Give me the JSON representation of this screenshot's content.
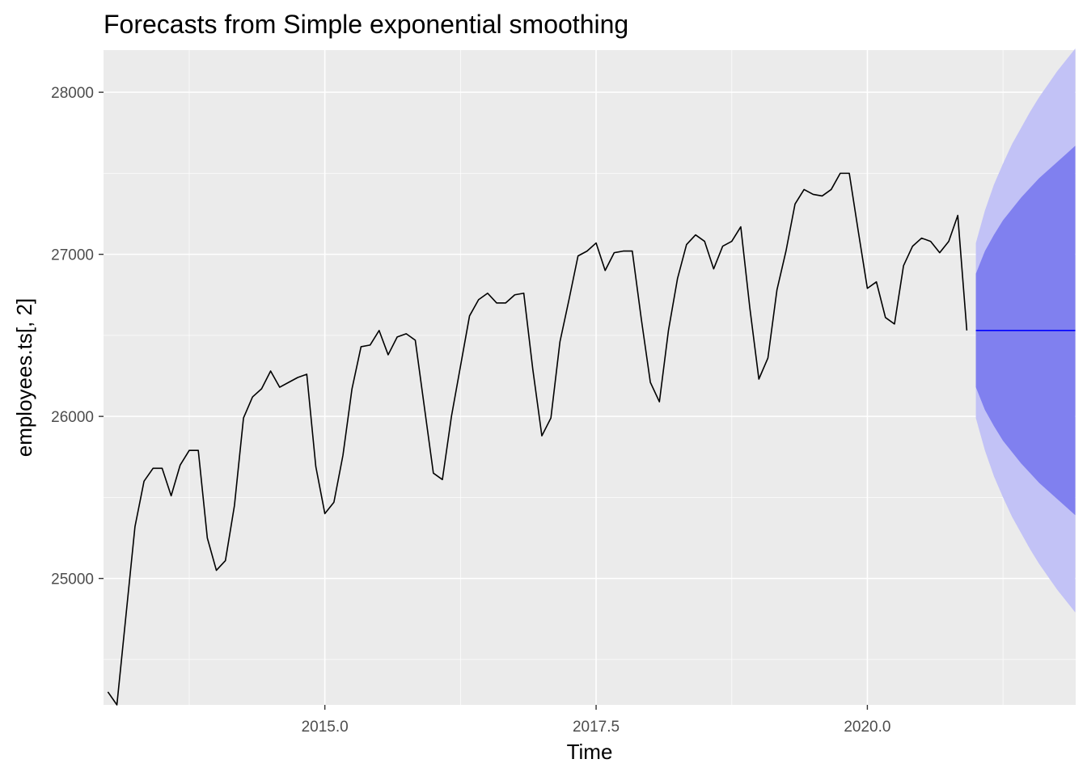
{
  "chart_data": {
    "type": "line",
    "title": "Forecasts from Simple exponential smoothing",
    "xlabel": "Time",
    "ylabel": "employees.ts[, 2]",
    "xlim": [
      2012.96,
      2021.92
    ],
    "ylim": [
      24220,
      28260
    ],
    "x_ticks": [
      {
        "value": 2015.0,
        "label": "2015.0"
      },
      {
        "value": 2017.5,
        "label": "2017.5"
      },
      {
        "value": 2020.0,
        "label": "2020.0"
      }
    ],
    "x_minor_ticks": [
      2013.75,
      2016.25,
      2018.75,
      2021.25
    ],
    "y_ticks": [
      {
        "value": 25000,
        "label": "25000"
      },
      {
        "value": 26000,
        "label": "26000"
      },
      {
        "value": 27000,
        "label": "27000"
      },
      {
        "value": 28000,
        "label": "28000"
      }
    ],
    "y_minor_ticks": [
      24500,
      25500,
      26500,
      27500
    ],
    "grid": true,
    "colors": {
      "panel_bg": "#ebebeb",
      "grid_major": "#ffffff",
      "series": "#000000",
      "forecast_line": "#0000ff",
      "band_80": "#8080ef",
      "band_95": "#c2c2f6"
    },
    "series": [
      {
        "start": 2013.0,
        "frequency": 12,
        "values": [
          24300,
          24220,
          24770,
          25320,
          25600,
          25680,
          25680,
          25510,
          25700,
          25790,
          25790,
          25250,
          25050,
          25110,
          25450,
          25990,
          26120,
          26170,
          26280,
          26180,
          26210,
          26240,
          26260,
          25690,
          25400,
          25470,
          25760,
          26170,
          26430,
          26440,
          26530,
          26380,
          26490,
          26510,
          26470,
          26060,
          25650,
          25610,
          26000,
          26310,
          26620,
          26720,
          26760,
          26700,
          26700,
          26750,
          26760,
          26290,
          25880,
          25990,
          26460,
          26720,
          26990,
          27020,
          27070,
          26900,
          27010,
          27020,
          27020,
          26600,
          26210,
          26090,
          26530,
          26850,
          27060,
          27120,
          27080,
          26910,
          27050,
          27080,
          27170,
          26670,
          26230,
          26360,
          26780,
          27020,
          27310,
          27400,
          27370,
          27360,
          27400,
          27500,
          27500,
          27140,
          26790,
          26830,
          26610,
          26570,
          26930,
          27050,
          27100,
          27080,
          27010,
          27080,
          27240,
          26530
        ]
      }
    ],
    "forecast": {
      "start": 2021.0,
      "frequency": 12,
      "mean": [
        26530,
        26530,
        26530,
        26530,
        26530,
        26530,
        26530,
        26530,
        26530,
        26530,
        26530,
        26530
      ],
      "lo80": [
        26180,
        26040,
        25940,
        25850,
        25780,
        25710,
        25650,
        25590,
        25540,
        25490,
        25440,
        25390
      ],
      "hi80": [
        26880,
        27020,
        27120,
        27210,
        27280,
        27350,
        27410,
        27470,
        27520,
        27570,
        27620,
        27670
      ],
      "lo95": [
        25990,
        25790,
        25630,
        25500,
        25380,
        25280,
        25180,
        25090,
        25010,
        24930,
        24860,
        24790
      ],
      "hi95": [
        27070,
        27270,
        27430,
        27560,
        27680,
        27780,
        27880,
        27970,
        28050,
        28130,
        28200,
        28270
      ]
    }
  }
}
